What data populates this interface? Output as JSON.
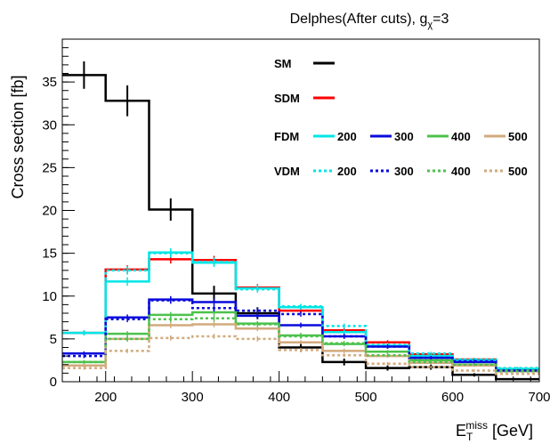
{
  "chart_data": {
    "type": "histogram",
    "title": "Delphes(After cuts), g",
    "title_sub": "χ",
    "title_suffix": "=3",
    "xlabel_main": "E",
    "xlabel_sub": "T",
    "xlabel_sup": "miss",
    "xlabel_unit": "[GeV]",
    "ylabel": "Cross section [fb]",
    "xlim": [
      150,
      700
    ],
    "ylim": [
      0,
      40
    ],
    "xticks": [
      200,
      300,
      400,
      500,
      600,
      700
    ],
    "yticks": [
      0,
      5,
      10,
      15,
      20,
      25,
      30,
      35
    ],
    "bin_edges": [
      150,
      200,
      250,
      300,
      350,
      400,
      450,
      500,
      550,
      600,
      650,
      700
    ],
    "legend": {
      "sm_label": "SM",
      "sdm_label": "SDM",
      "fdm_label": "FDM",
      "vdm_label": "VDM",
      "mass_labels": [
        "200",
        "300",
        "400",
        "500"
      ]
    },
    "series": [
      {
        "name": "SM",
        "color": "#000000",
        "style": "solid",
        "values": [
          35.8,
          32.8,
          20.1,
          10.3,
          8.0,
          4.0,
          2.3,
          1.6,
          1.7,
          0.8,
          0.3
        ],
        "errors": [
          1.6,
          1.8,
          1.3,
          0.9,
          0.7,
          0.5,
          0.4,
          0.3,
          0.3,
          0.2,
          0.1
        ]
      },
      {
        "name": "SDM",
        "color": "#ff0000",
        "style": "solid",
        "values": [
          5.7,
          13.1,
          14.3,
          14.2,
          11.0,
          8.3,
          6.0,
          4.6,
          3.2,
          2.6,
          1.5
        ],
        "errors": [
          0.3,
          0.5,
          0.5,
          0.5,
          0.4,
          0.3,
          0.3,
          0.25,
          0.2,
          0.2,
          0.15
        ]
      },
      {
        "name": "FDM 200",
        "color": "#00e5e5",
        "style": "solid",
        "values": [
          5.7,
          11.7,
          15.1,
          13.9,
          10.9,
          8.7,
          5.8,
          4.2,
          3.0,
          2.5,
          1.5
        ],
        "errors": [
          0.3,
          0.5,
          0.5,
          0.5,
          0.4,
          0.3,
          0.3,
          0.25,
          0.2,
          0.2,
          0.15
        ]
      },
      {
        "name": "FDM 300",
        "color": "#0a0adc",
        "style": "solid",
        "values": [
          3.3,
          7.5,
          9.6,
          9.3,
          7.7,
          6.6,
          5.3,
          4.1,
          2.8,
          2.3,
          1.3
        ],
        "errors": [
          0.25,
          0.35,
          0.4,
          0.4,
          0.35,
          0.3,
          0.3,
          0.25,
          0.2,
          0.2,
          0.15
        ]
      },
      {
        "name": "FDM 400",
        "color": "#4cc24c",
        "style": "solid",
        "values": [
          2.3,
          5.6,
          7.8,
          8.1,
          6.8,
          5.4,
          4.4,
          3.5,
          2.5,
          2.0,
          1.3
        ],
        "errors": [
          0.2,
          0.3,
          0.35,
          0.35,
          0.3,
          0.3,
          0.25,
          0.2,
          0.2,
          0.15,
          0.1
        ]
      },
      {
        "name": "FDM 500",
        "color": "#d2aa7d",
        "style": "solid",
        "values": [
          1.9,
          5.0,
          6.6,
          6.7,
          6.2,
          4.6,
          3.6,
          3.0,
          2.2,
          1.9,
          1.2
        ],
        "errors": [
          0.2,
          0.3,
          0.35,
          0.35,
          0.3,
          0.25,
          0.25,
          0.2,
          0.2,
          0.15,
          0.1
        ]
      },
      {
        "name": "VDM 200",
        "color": "#00e5e5",
        "style": "dotted",
        "values": [
          5.7,
          13.0,
          15.0,
          14.0,
          10.8,
          8.8,
          6.5,
          4.3,
          3.3,
          2.6,
          1.6
        ],
        "errors": [
          0.3,
          0.5,
          0.5,
          0.5,
          0.4,
          0.3,
          0.3,
          0.25,
          0.2,
          0.2,
          0.15
        ]
      },
      {
        "name": "VDM 300",
        "color": "#0a0adc",
        "style": "dotted",
        "values": [
          3.0,
          7.3,
          9.5,
          8.6,
          8.3,
          7.9,
          5.3,
          4.1,
          2.8,
          2.4,
          1.3
        ],
        "errors": [
          0.25,
          0.35,
          0.4,
          0.4,
          0.35,
          0.3,
          0.3,
          0.25,
          0.2,
          0.2,
          0.15
        ]
      },
      {
        "name": "VDM 400",
        "color": "#4cc24c",
        "style": "dotted",
        "values": [
          2.3,
          5.0,
          7.3,
          7.4,
          6.7,
          5.3,
          4.5,
          3.1,
          2.3,
          2.0,
          1.2
        ],
        "errors": [
          0.2,
          0.3,
          0.35,
          0.35,
          0.3,
          0.3,
          0.25,
          0.2,
          0.2,
          0.15,
          0.1
        ]
      },
      {
        "name": "VDM 500",
        "color": "#d2aa7d",
        "style": "dotted",
        "values": [
          1.6,
          3.6,
          5.1,
          5.3,
          5.0,
          3.7,
          3.1,
          2.1,
          1.7,
          1.3,
          0.9
        ],
        "errors": [
          0.2,
          0.25,
          0.3,
          0.3,
          0.3,
          0.25,
          0.2,
          0.2,
          0.15,
          0.15,
          0.1
        ]
      }
    ]
  }
}
